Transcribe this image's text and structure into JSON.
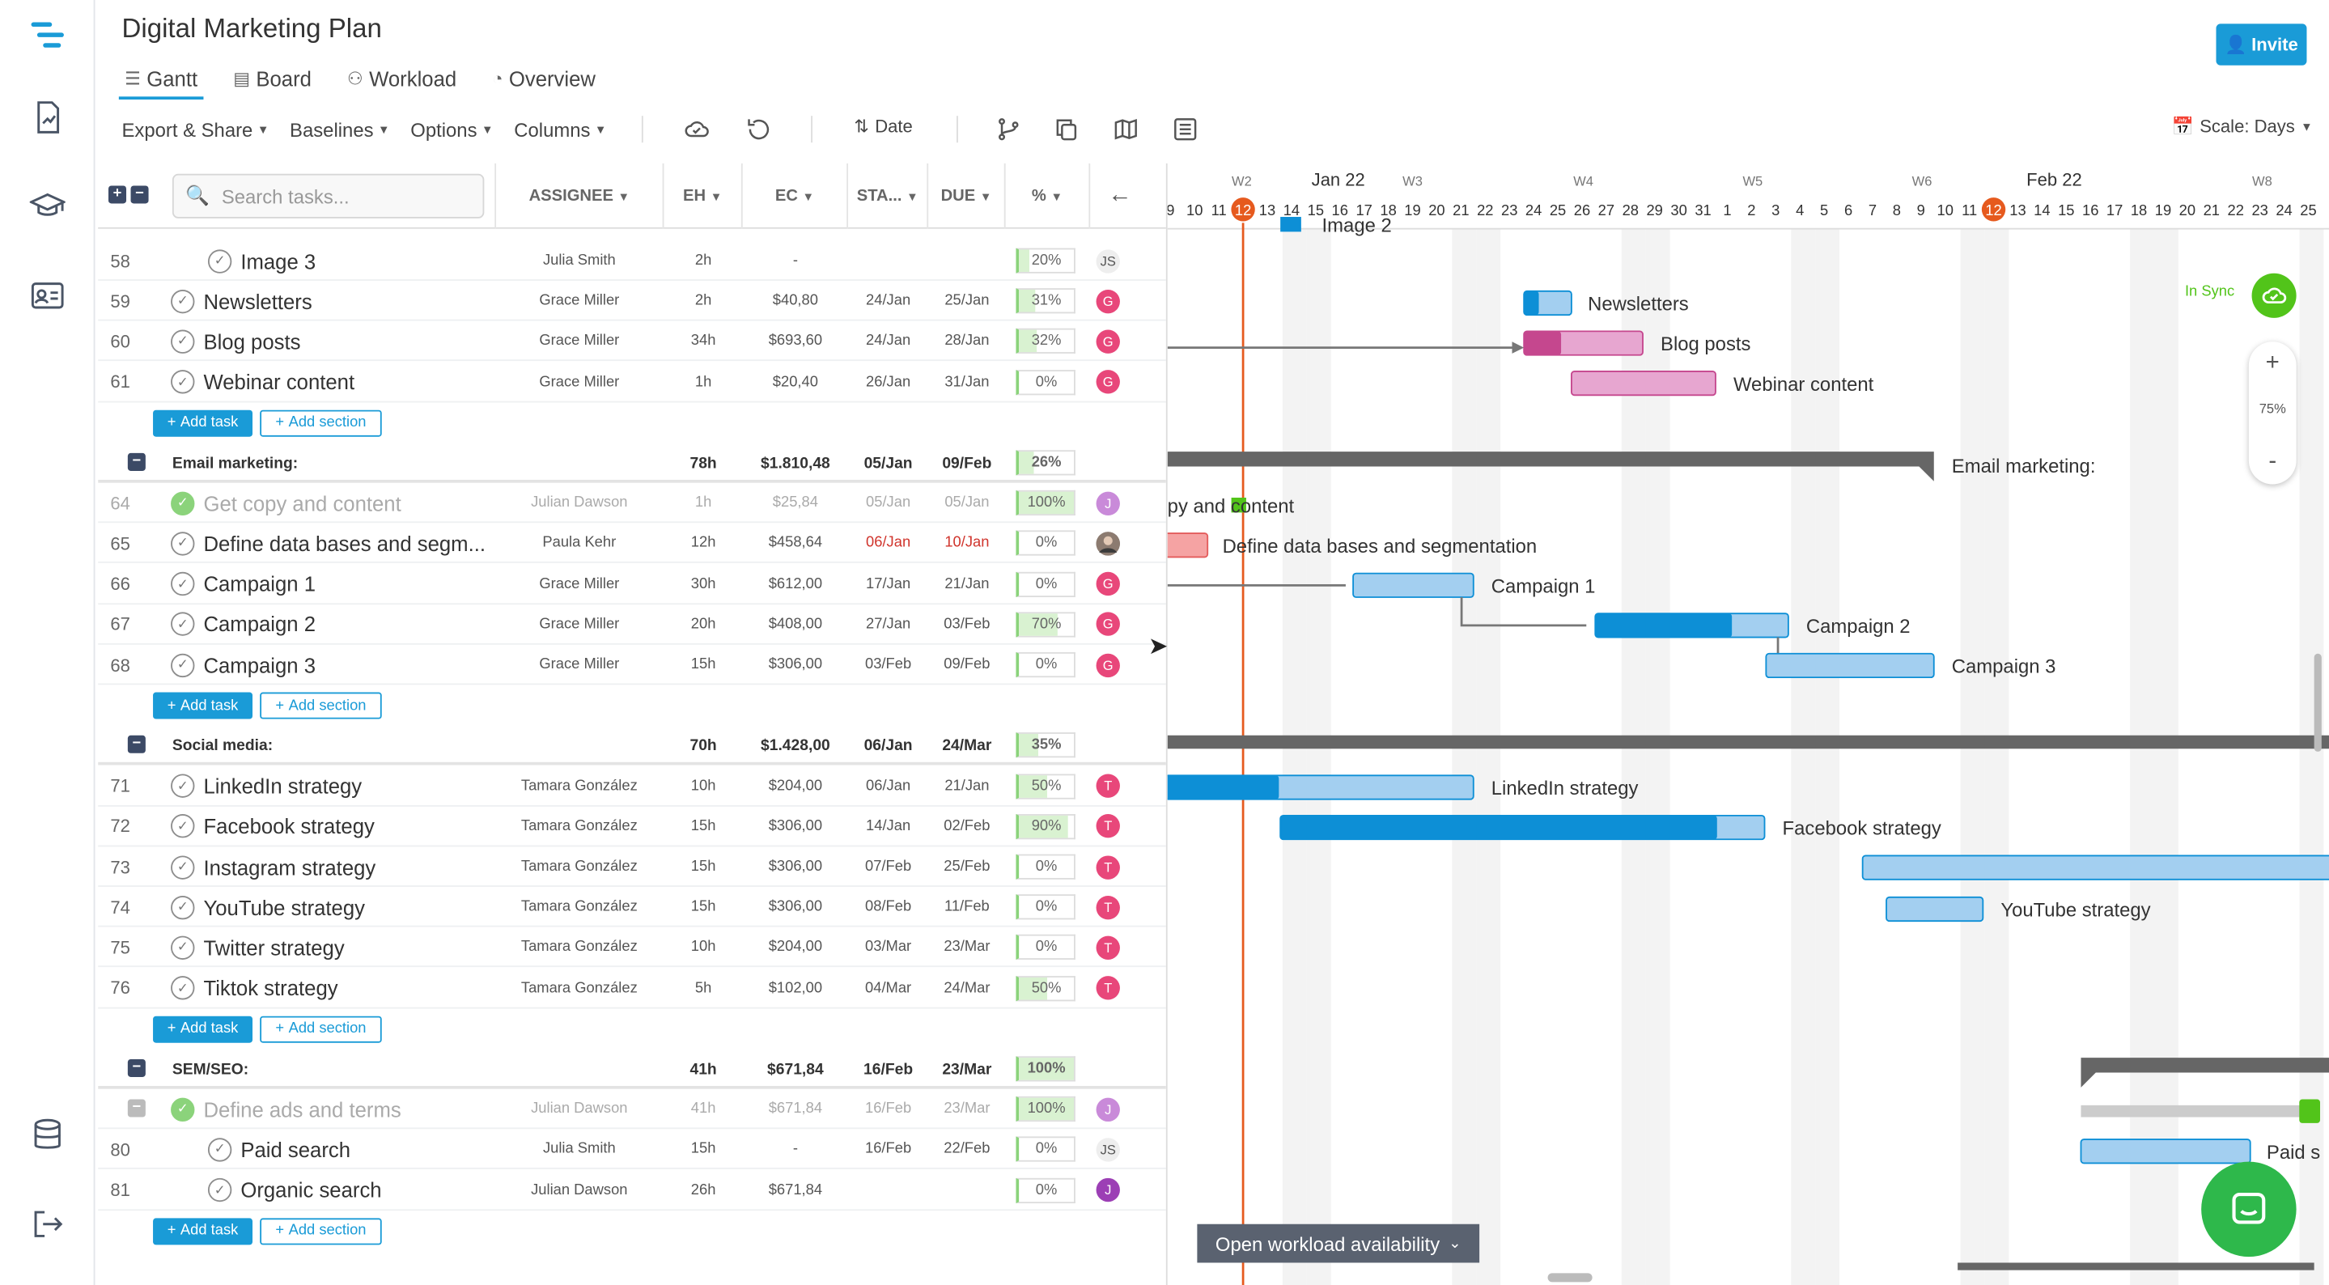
{
  "title": "Digital Marketing Plan",
  "tabs": [
    {
      "label": "Gantt"
    },
    {
      "label": "Board"
    },
    {
      "label": "Workload"
    },
    {
      "label": "Overview"
    }
  ],
  "invite": "Invite",
  "toolbar": {
    "export": "Export & Share",
    "baselines": "Baselines",
    "options": "Options",
    "columns": "Columns",
    "sort": "Date",
    "scale": "Scale: Days"
  },
  "search_placeholder": "Search tasks...",
  "columns": {
    "assignee": "ASSIGNEE",
    "eh": "EH",
    "ec": "EC",
    "start": "STA...",
    "due": "DUE",
    "pct": "%"
  },
  "timeline": {
    "weeks": [
      {
        "label": "W2"
      },
      {
        "label": "W3"
      },
      {
        "label": "W4"
      },
      {
        "label": "W5"
      },
      {
        "label": "W6"
      },
      {
        "label": "W8"
      }
    ],
    "months": [
      {
        "label": "Jan 22"
      },
      {
        "label": "Feb 22"
      }
    ],
    "days": [
      "9",
      "10",
      "11",
      "12",
      "13",
      "14",
      "15",
      "16",
      "17",
      "18",
      "19",
      "20",
      "21",
      "22",
      "23",
      "24",
      "25",
      "26",
      "27",
      "28",
      "29",
      "30",
      "31",
      "1",
      "2",
      "3",
      "4",
      "5",
      "6",
      "7",
      "8",
      "9",
      "10",
      "11",
      "12",
      "13",
      "14",
      "15",
      "16",
      "17",
      "18",
      "19",
      "20",
      "21",
      "22",
      "23",
      "24",
      "25"
    ],
    "today": "12"
  },
  "rows": [
    {
      "kind": "task",
      "num": "58",
      "name": "Image 3",
      "indent": 2,
      "assignee": "Julia Smith",
      "eh": "2h",
      "ec": "-",
      "start": "",
      "due": "",
      "pct": "20%",
      "fill": 20,
      "avatar": "JS",
      "avatar_color": "#eeeeee",
      "avatar_text": "#555555"
    },
    {
      "kind": "task",
      "num": "59",
      "name": "Newsletters",
      "indent": 1,
      "assignee": "Grace Miller",
      "eh": "2h",
      "ec": "$40,80",
      "start": "24/Jan",
      "due": "25/Jan",
      "pct": "31%",
      "fill": 31,
      "avatar": "G",
      "avatar_color": "#e8477a"
    },
    {
      "kind": "task",
      "num": "60",
      "name": "Blog posts",
      "indent": 1,
      "assignee": "Grace Miller",
      "eh": "34h",
      "ec": "$693,60",
      "start": "24/Jan",
      "due": "28/Jan",
      "pct": "32%",
      "fill": 32,
      "avatar": "G",
      "avatar_color": "#e8477a"
    },
    {
      "kind": "task",
      "num": "61",
      "name": "Webinar content",
      "indent": 1,
      "assignee": "Grace Miller",
      "eh": "1h",
      "ec": "$20,40",
      "start": "26/Jan",
      "due": "31/Jan",
      "pct": "0%",
      "fill": 0,
      "avatar": "G",
      "avatar_color": "#e8477a"
    },
    {
      "kind": "add",
      "add_task": "Add task",
      "add_section": "Add section"
    },
    {
      "kind": "section",
      "name": "Email marketing:",
      "eh": "78h",
      "ec": "$1.810,48",
      "start": "05/Jan",
      "due": "09/Feb",
      "pct": "26%",
      "fill": 26
    },
    {
      "kind": "task",
      "grey": true,
      "done": true,
      "num": "64",
      "name": "Get copy and content",
      "indent": 1,
      "assignee": "Julian Dawson",
      "eh": "1h",
      "ec": "$25,84",
      "start": "05/Jan",
      "due": "05/Jan",
      "pct": "100%",
      "fill": 100,
      "avatar": "J",
      "avatar_color": "#c98ad9"
    },
    {
      "kind": "task",
      "num": "65",
      "name": "Define data bases and segm...",
      "indent": 1,
      "assignee": "Paula Kehr",
      "eh": "12h",
      "ec": "$458,64",
      "start": "06/Jan",
      "due": "10/Jan",
      "pct": "0%",
      "fill": 0,
      "avatar": "",
      "avatar_color": "#6d5a4e",
      "late": true
    },
    {
      "kind": "task",
      "num": "66",
      "name": "Campaign 1",
      "indent": 1,
      "assignee": "Grace Miller",
      "eh": "30h",
      "ec": "$612,00",
      "start": "17/Jan",
      "due": "21/Jan",
      "pct": "0%",
      "fill": 0,
      "avatar": "G",
      "avatar_color": "#e8477a"
    },
    {
      "kind": "task",
      "num": "67",
      "name": "Campaign 2",
      "indent": 1,
      "assignee": "Grace Miller",
      "eh": "20h",
      "ec": "$408,00",
      "start": "27/Jan",
      "due": "03/Feb",
      "pct": "70%",
      "fill": 70,
      "avatar": "G",
      "avatar_color": "#e8477a"
    },
    {
      "kind": "task",
      "num": "68",
      "name": "Campaign 3",
      "indent": 1,
      "assignee": "Grace Miller",
      "eh": "15h",
      "ec": "$306,00",
      "start": "03/Feb",
      "due": "09/Feb",
      "pct": "0%",
      "fill": 0,
      "avatar": "G",
      "avatar_color": "#e8477a"
    },
    {
      "kind": "add",
      "add_task": "Add task",
      "add_section": "Add section"
    },
    {
      "kind": "section",
      "name": "Social media:",
      "eh": "70h",
      "ec": "$1.428,00",
      "start": "06/Jan",
      "due": "24/Mar",
      "pct": "35%",
      "fill": 35
    },
    {
      "kind": "task",
      "num": "71",
      "name": "LinkedIn strategy",
      "indent": 1,
      "assignee": "Tamara González",
      "eh": "10h",
      "ec": "$204,00",
      "start": "06/Jan",
      "due": "21/Jan",
      "pct": "50%",
      "fill": 50,
      "avatar": "T",
      "avatar_color": "#e8477a"
    },
    {
      "kind": "task",
      "num": "72",
      "name": "Facebook strategy",
      "indent": 1,
      "assignee": "Tamara González",
      "eh": "15h",
      "ec": "$306,00",
      "start": "14/Jan",
      "due": "02/Feb",
      "pct": "90%",
      "fill": 90,
      "avatar": "T",
      "avatar_color": "#e8477a"
    },
    {
      "kind": "task",
      "num": "73",
      "name": "Instagram strategy",
      "indent": 1,
      "assignee": "Tamara González",
      "eh": "15h",
      "ec": "$306,00",
      "start": "07/Feb",
      "due": "25/Feb",
      "pct": "0%",
      "fill": 0,
      "avatar": "T",
      "avatar_color": "#e8477a"
    },
    {
      "kind": "task",
      "num": "74",
      "name": "YouTube strategy",
      "indent": 1,
      "assignee": "Tamara González",
      "eh": "15h",
      "ec": "$306,00",
      "start": "08/Feb",
      "due": "11/Feb",
      "pct": "0%",
      "fill": 0,
      "avatar": "T",
      "avatar_color": "#e8477a"
    },
    {
      "kind": "task",
      "num": "75",
      "name": "Twitter strategy",
      "indent": 1,
      "assignee": "Tamara González",
      "eh": "10h",
      "ec": "$204,00",
      "start": "03/Mar",
      "due": "23/Mar",
      "pct": "0%",
      "fill": 0,
      "avatar": "T",
      "avatar_color": "#e8477a"
    },
    {
      "kind": "task",
      "num": "76",
      "name": "Tiktok strategy",
      "indent": 1,
      "assignee": "Tamara González",
      "eh": "5h",
      "ec": "$102,00",
      "start": "04/Mar",
      "due": "24/Mar",
      "pct": "50%",
      "fill": 50,
      "avatar": "T",
      "avatar_color": "#e8477a"
    },
    {
      "kind": "add",
      "add_task": "Add task",
      "add_section": "Add section"
    },
    {
      "kind": "section",
      "name": "SEM/SEO:",
      "eh": "41h",
      "ec": "$671,84",
      "start": "16/Feb",
      "due": "23/Mar",
      "pct": "100%",
      "fill": 100
    },
    {
      "kind": "task",
      "grey": true,
      "done": true,
      "collapse": true,
      "num": "",
      "name": "Define ads and terms",
      "indent": 1,
      "assignee": "Julian Dawson",
      "eh": "41h",
      "ec": "$671,84",
      "start": "16/Feb",
      "due": "23/Mar",
      "pct": "100%",
      "fill": 100,
      "avatar": "J",
      "avatar_color": "#c98ad9"
    },
    {
      "kind": "task",
      "num": "80",
      "name": "Paid search",
      "indent": 2,
      "assignee": "Julia Smith",
      "eh": "15h",
      "ec": "-",
      "start": "16/Feb",
      "due": "22/Feb",
      "pct": "0%",
      "fill": 0,
      "avatar": "JS",
      "avatar_color": "#eeeeee",
      "avatar_text": "#555555"
    },
    {
      "kind": "task",
      "num": "81",
      "name": "Organic search",
      "indent": 2,
      "assignee": "Julian Dawson",
      "eh": "26h",
      "ec": "$671,84",
      "start": "",
      "due": "",
      "pct": "0%",
      "fill": 0,
      "avatar": "J",
      "avatar_color": "#9c3fb5"
    },
    {
      "kind": "add",
      "add_task": "Add task",
      "add_section": "Add section"
    }
  ],
  "gantt_labels": {
    "image": "Image 2",
    "newsletters": "Newsletters",
    "blog": "Blog posts",
    "webinar": "Webinar content",
    "email": "Email marketing:",
    "copy": "py and content",
    "define": "Define data bases and segmentation",
    "c1": "Campaign 1",
    "c2": "Campaign 2",
    "c3": "Campaign 3",
    "linkedin": "LinkedIn strategy",
    "facebook": "Facebook strategy",
    "youtube": "YouTube strategy",
    "paid": "Paid s"
  },
  "sync": "In Sync",
  "zoom": {
    "plus": "+",
    "level": "75%",
    "minus": "-"
  },
  "open_workload": "Open workload availability"
}
